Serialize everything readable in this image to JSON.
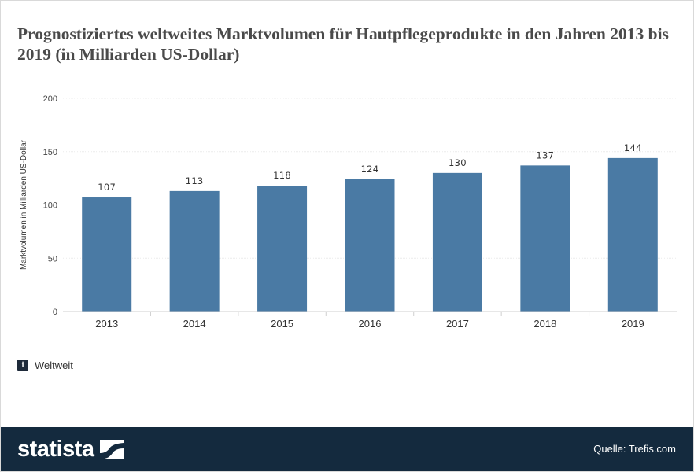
{
  "header": {
    "title": "Prognostiziertes weltweites Marktvolumen für Hautpflegeprodukte in den Jahren 2013 bis 2019 (in Milliarden US-Dollar)"
  },
  "chart_data": {
    "type": "bar",
    "categories": [
      "2013",
      "2014",
      "2015",
      "2016",
      "2017",
      "2018",
      "2019"
    ],
    "values": [
      107,
      113,
      118,
      124,
      130,
      137,
      144
    ],
    "data_labels": [
      "107",
      "113",
      "118",
      "124",
      "130",
      "137",
      "144"
    ],
    "xlabel": "",
    "ylabel": "Marktvolumen in Milliarden US-Dollar",
    "ylim": [
      0,
      200
    ],
    "yticks": [
      0,
      50,
      100,
      150,
      200
    ],
    "ytick_labels": [
      "0",
      "50",
      "100",
      "150",
      "200"
    ],
    "grid": true,
    "bar_color": "#4a7aa4"
  },
  "info": {
    "icon": "info-icon",
    "icon_glyph": "i",
    "label": "Weltweit"
  },
  "footer": {
    "brand": "statista",
    "source": "Quelle: Trefis.com",
    "background": "#142a3e"
  }
}
